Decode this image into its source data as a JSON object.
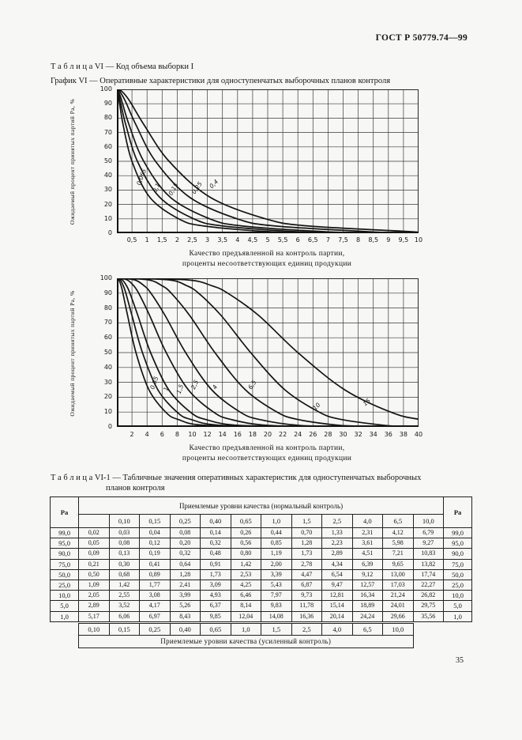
{
  "page": {
    "header": "ГОСТ Р 50779.74—99",
    "page_number": "35",
    "caption_table_vi": "Т а б л и ц а   VI — Код объема выборки I",
    "caption_grafik_vi": "График VI — Оперативные характеристики для одноступенчатых выборочных планов контроля",
    "caption_table_vi1_line1": "Т а б л и ц а   VI-1 — Табличные значения оперативных характеристик для одноступенчатых выборочных",
    "caption_table_vi1_line2": "планов контроля"
  },
  "chart_data": [
    {
      "type": "line",
      "title": "",
      "ylabel": "Ожидаемый процент принятых партий Pa, %",
      "xlabel_line1": "Качество предъявленной на контроль партии,",
      "xlabel_line2": "проценты несоответствующих единиц продукции",
      "xlim": [
        0,
        10
      ],
      "ylim": [
        0,
        100
      ],
      "grid": true,
      "x_ticks": [
        "0,5",
        "1",
        "1,5",
        "2",
        "2,5",
        "3",
        "3,5",
        "4",
        "4,5",
        "5",
        "5,5",
        "6",
        "6,5",
        "7",
        "7,5",
        "8",
        "8,5",
        "9",
        "9,5",
        "10"
      ],
      "y_ticks": [
        "100",
        "90",
        "80",
        "70",
        "60",
        "50",
        "40",
        "30",
        "20",
        "10",
        "0"
      ],
      "pa_levels": [
        100,
        99,
        95,
        90,
        75,
        50,
        25,
        10,
        5,
        1
      ],
      "series": [
        {
          "name": "0,065",
          "p": [
            0,
            0.02,
            0.05,
            0.09,
            0.21,
            0.5,
            1.09,
            2.05,
            2.89,
            5.17
          ]
        },
        {
          "name": "0,1",
          "p": [
            0,
            0.03,
            0.08,
            0.13,
            0.3,
            0.68,
            1.42,
            2.55,
            3.52,
            6.06
          ]
        },
        {
          "name": "0,15",
          "p": [
            0,
            0.04,
            0.12,
            0.19,
            0.41,
            0.89,
            1.77,
            3.08,
            4.17,
            6.97
          ]
        },
        {
          "name": "0,25",
          "p": [
            0,
            0.08,
            0.2,
            0.32,
            0.64,
            1.28,
            2.41,
            3.99,
            5.26,
            8.43
          ]
        },
        {
          "name": "0,4",
          "p": [
            0,
            0.14,
            0.32,
            0.48,
            0.91,
            1.73,
            3.09,
            4.93,
            6.37,
            9.85
          ]
        }
      ],
      "curve_labels": [
        {
          "text": "0,065",
          "x": 0.78,
          "y": 33,
          "rot": -70
        },
        {
          "text": "0,1",
          "x": 1.3,
          "y": 28,
          "rot": -65
        },
        {
          "text": "0,15",
          "x": 1.82,
          "y": 26,
          "rot": -60
        },
        {
          "text": "0,25",
          "x": 2.58,
          "y": 27,
          "rot": -55
        },
        {
          "text": "0,4",
          "x": 3.15,
          "y": 31,
          "rot": -45
        }
      ]
    },
    {
      "type": "line",
      "title": "",
      "ylabel": "Ожидаемый процент принятых партий Pa, %",
      "xlabel_line1": "Качество предъявленной на контроль партии,",
      "xlabel_line2": "проценты несоответствующих единиц продукции",
      "xlim": [
        0,
        40
      ],
      "ylim": [
        0,
        100
      ],
      "grid": true,
      "x_ticks": [
        "2",
        "4",
        "6",
        "8",
        "10",
        "12",
        "14",
        "16",
        "18",
        "20",
        "22",
        "24",
        "26",
        "28",
        "30",
        "32",
        "34",
        "36",
        "38",
        "40"
      ],
      "y_ticks": [
        "100",
        "90",
        "80",
        "70",
        "60",
        "50",
        "40",
        "30",
        "20",
        "10",
        "0"
      ],
      "pa_levels": [
        100,
        99,
        95,
        90,
        75,
        50,
        25,
        10,
        5,
        1
      ],
      "series": [
        {
          "name": "0,65",
          "p": [
            0,
            0.26,
            0.56,
            0.8,
            1.42,
            2.53,
            4.25,
            6.46,
            8.14,
            12.04
          ]
        },
        {
          "name": "1",
          "p": [
            0,
            0.44,
            0.85,
            1.19,
            2.0,
            3.39,
            5.43,
            7.97,
            9.83,
            14.08
          ]
        },
        {
          "name": "1,5",
          "p": [
            0,
            0.7,
            1.28,
            1.73,
            2.78,
            4.47,
            6.87,
            9.73,
            11.78,
            16.36
          ]
        },
        {
          "name": "2,5",
          "p": [
            0,
            1.33,
            2.23,
            2.89,
            4.34,
            6.54,
            9.47,
            12.81,
            15.14,
            20.14
          ]
        },
        {
          "name": "4",
          "p": [
            0,
            2.31,
            3.61,
            4.51,
            6.39,
            9.12,
            12.57,
            16.34,
            18.89,
            24.24
          ]
        },
        {
          "name": "6,5",
          "p": [
            0,
            4.12,
            5.98,
            7.21,
            9.65,
            13.0,
            17.03,
            21.24,
            24.01,
            29.66
          ]
        },
        {
          "name": "10",
          "p": [
            0,
            6.79,
            9.27,
            10.83,
            13.82,
            17.74,
            22.27,
            26.82,
            29.75,
            35.56
          ]
        },
        {
          "name": "15",
          "p": [
            0,
            9.2,
            12.6,
            14.7,
            18.8,
            24.0,
            30.2,
            36.3,
            40.3,
            48.0
          ]
        }
      ],
      "curve_labels": [
        {
          "text": "0,65",
          "x": 4.9,
          "y": 25,
          "rot": -70
        },
        {
          "text": "1",
          "x": 6.7,
          "y": 24,
          "rot": -75
        },
        {
          "text": "1,5",
          "x": 8.4,
          "y": 22,
          "rot": -70
        },
        {
          "text": "2,5",
          "x": 10.3,
          "y": 25,
          "rot": -65
        },
        {
          "text": "4",
          "x": 13.1,
          "y": 25,
          "rot": -60
        },
        {
          "text": "6,5",
          "x": 17.8,
          "y": 25,
          "rot": -55
        },
        {
          "text": "10",
          "x": 26.3,
          "y": 11,
          "rot": -45
        },
        {
          "text": "15",
          "x": 32.9,
          "y": 14,
          "rot": -40
        }
      ]
    }
  ],
  "table": {
    "corner_label": "Pa",
    "header_span": "Приемлемые уровни качества (нормальный контроль)",
    "aql_normal": [
      "",
      "0,10",
      "0,15",
      "0,25",
      "0,40",
      "0,65",
      "1,0",
      "1,5",
      "2,5",
      "4,0",
      "6,5",
      "10,0"
    ],
    "rows": [
      {
        "pa": "99,0",
        "values": [
          "0,02",
          "0,03",
          "0,04",
          "0,08",
          "0,14",
          "0,26",
          "0,44",
          "0,70",
          "1,33",
          "2,31",
          "4,12",
          "6,79"
        ]
      },
      {
        "pa": "95,0",
        "values": [
          "0,05",
          "0,08",
          "0,12",
          "0,20",
          "0,32",
          "0,56",
          "0,85",
          "1,28",
          "2,23",
          "3,61",
          "5,98",
          "9,27"
        ]
      },
      {
        "pa": "90,0",
        "values": [
          "0,09",
          "0,13",
          "0,19",
          "0,32",
          "0,48",
          "0,80",
          "1,19",
          "1,73",
          "2,89",
          "4,51",
          "7,21",
          "10,83"
        ]
      },
      {
        "pa": "75,0",
        "values": [
          "0,21",
          "0,30",
          "0,41",
          "0,64",
          "0,91",
          "1,42",
          "2,00",
          "2,78",
          "4,34",
          "6,39",
          "9,65",
          "13,82"
        ]
      },
      {
        "pa": "50,0",
        "values": [
          "0,50",
          "0,68",
          "0,89",
          "1,28",
          "1,73",
          "2,53",
          "3,39",
          "4,47",
          "6,54",
          "9,12",
          "13,00",
          "17,74"
        ]
      },
      {
        "pa": "25,0",
        "values": [
          "1,09",
          "1,42",
          "1,77",
          "2,41",
          "3,09",
          "4,25",
          "5,43",
          "6,87",
          "9,47",
          "12,57",
          "17,03",
          "22,27"
        ]
      },
      {
        "pa": "10,0",
        "values": [
          "2,05",
          "2,55",
          "3,08",
          "3,99",
          "4,93",
          "6,46",
          "7,97",
          "9,73",
          "12,81",
          "16,34",
          "21,24",
          "26,82"
        ]
      },
      {
        "pa": "5,0",
        "values": [
          "2,89",
          "3,52",
          "4,17",
          "5,26",
          "6,37",
          "8,14",
          "9,83",
          "11,78",
          "15,14",
          "18,89",
          "24,01",
          "29,75"
        ]
      },
      {
        "pa": "1,0",
        "values": [
          "5,17",
          "6,06",
          "6,97",
          "8,43",
          "9,85",
          "12,04",
          "14,08",
          "16,36",
          "20,14",
          "24,24",
          "29,66",
          "35,56"
        ]
      }
    ],
    "aql_tightened": [
      "0,10",
      "0,15",
      "0,25",
      "0,40",
      "0,65",
      "1,0",
      "1,5",
      "2,5",
      "4,0",
      "6,5",
      "10,0"
    ],
    "footer_span": "Приемлемые уровни качества (усиленный контроль)"
  }
}
